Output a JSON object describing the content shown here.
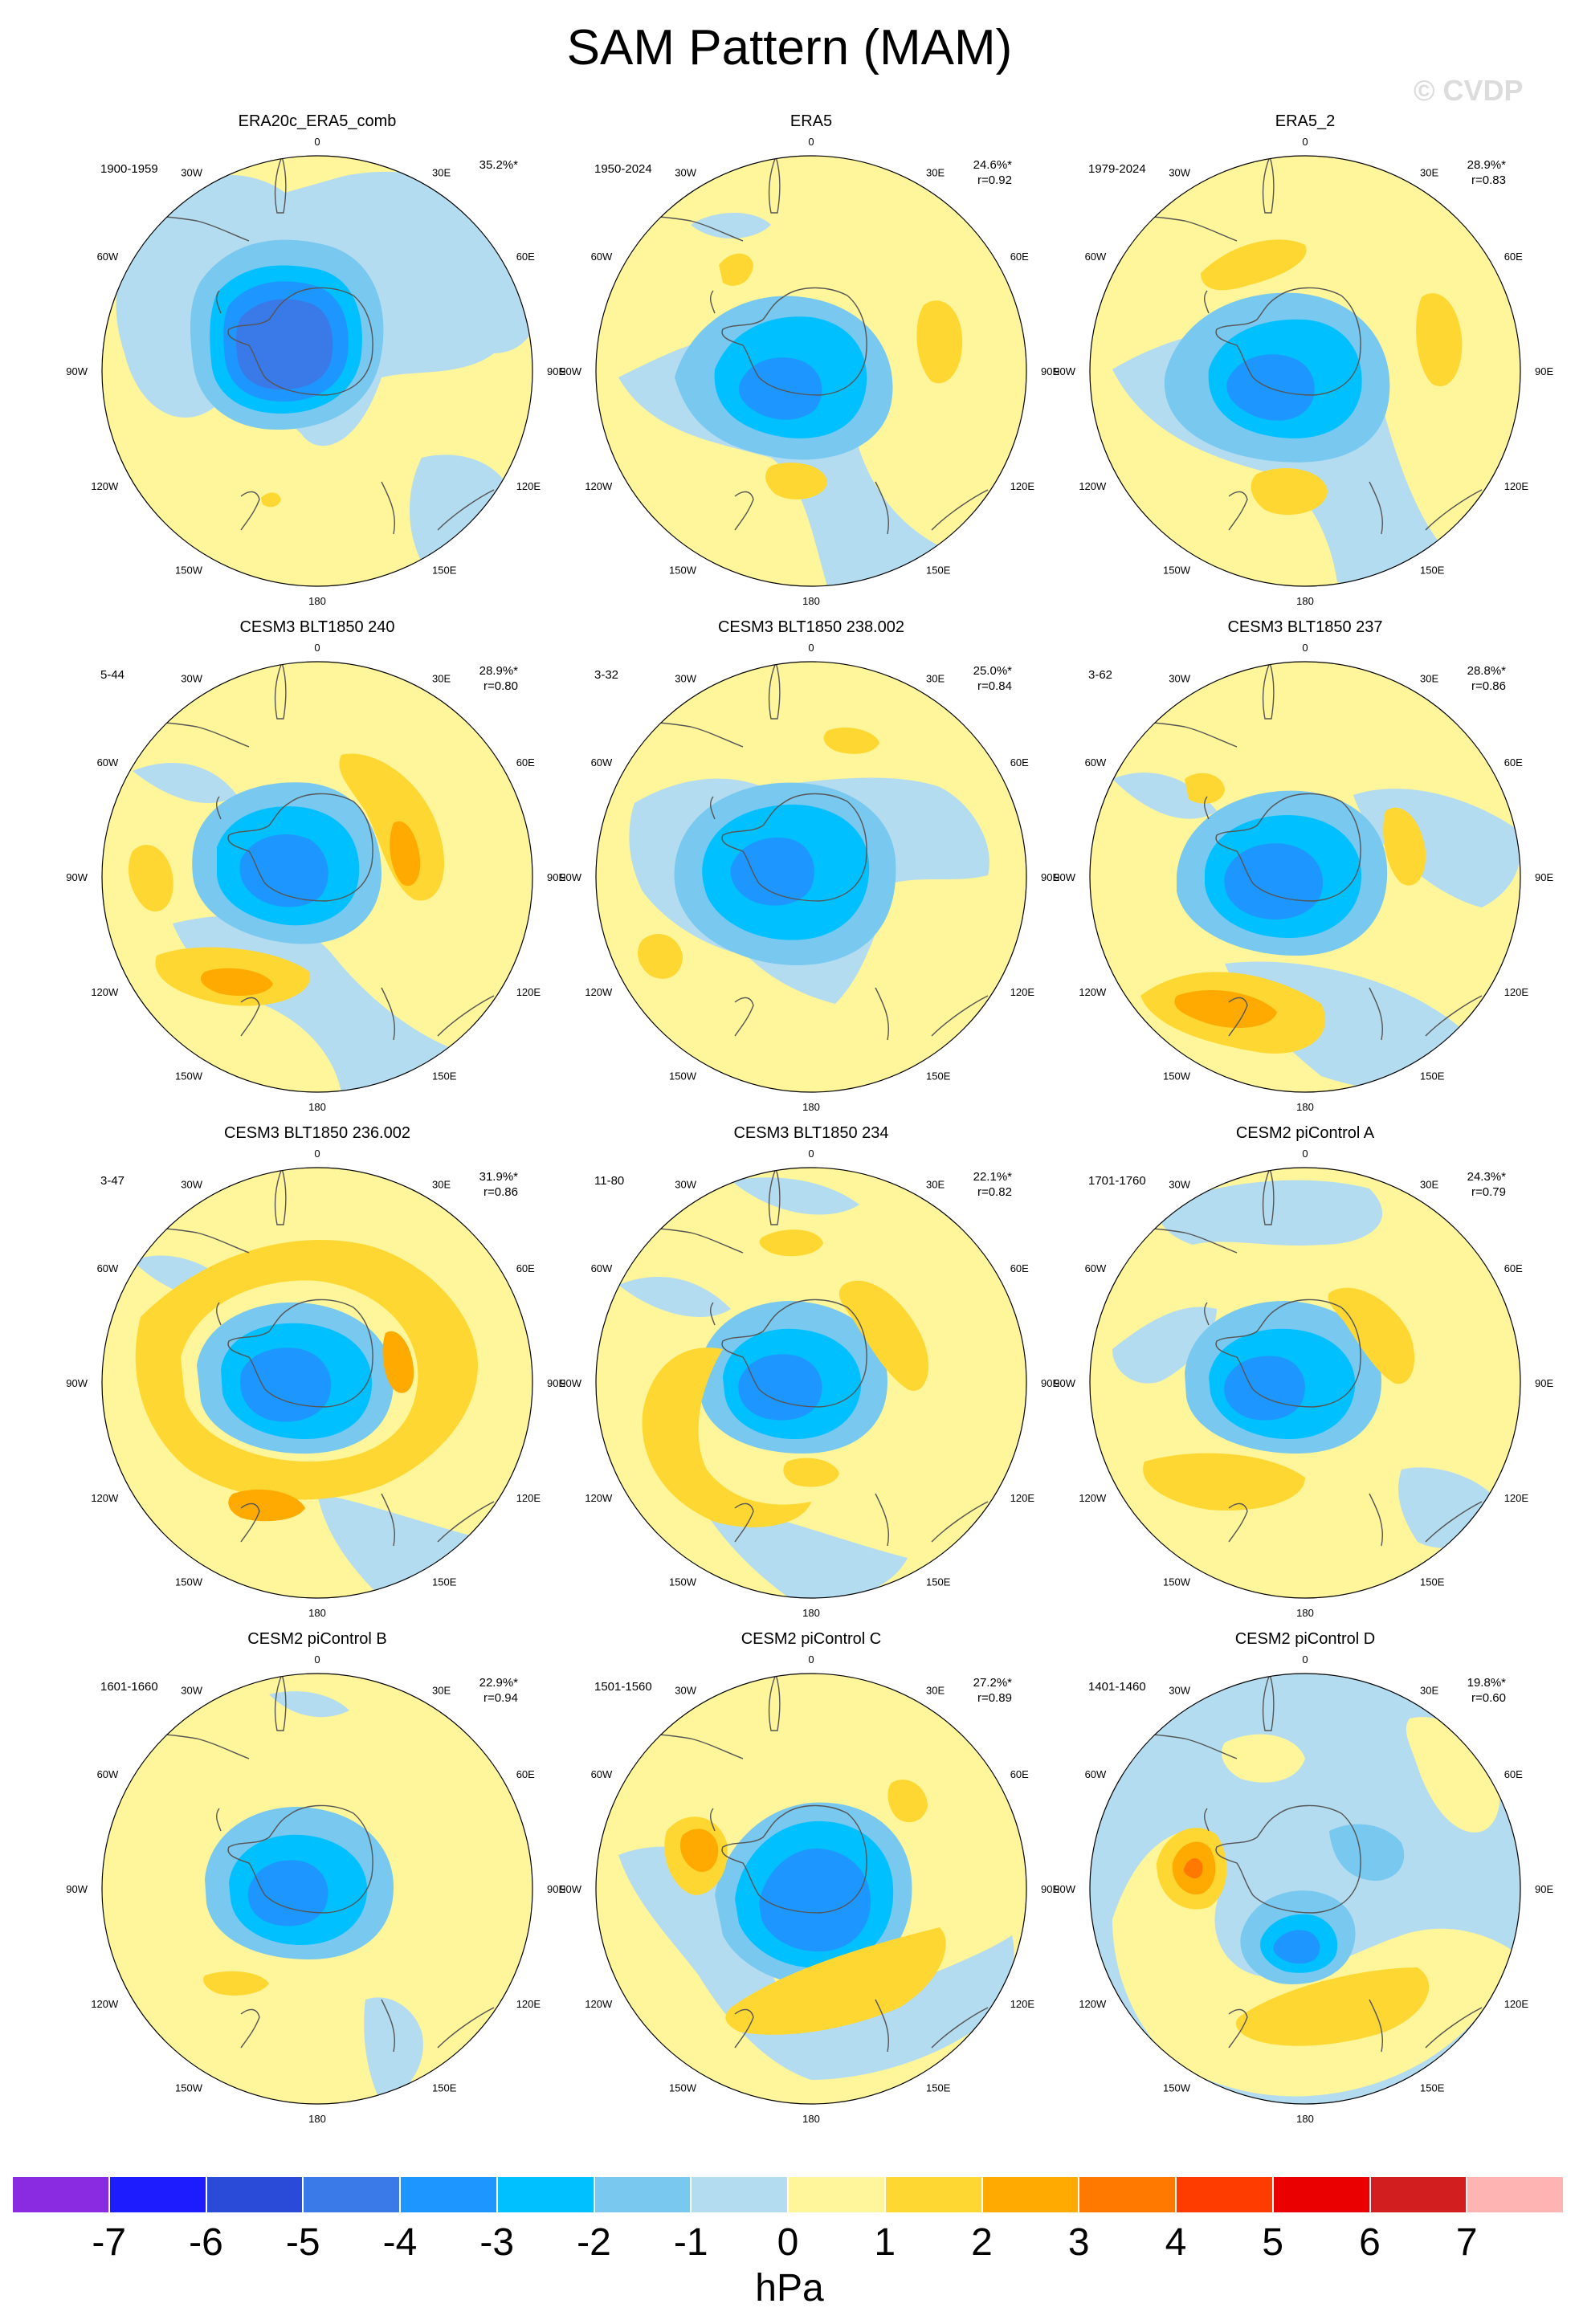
{
  "title": "SAM Pattern (MAM)",
  "copyright": "© CVDP",
  "longitude_labels": [
    "0",
    "30E",
    "60E",
    "90E",
    "120E",
    "150E",
    "180",
    "150W",
    "120W",
    "90W",
    "60W",
    "30W"
  ],
  "panels": [
    {
      "title": "ERA20c_ERA5_comb",
      "period": "1900-1959",
      "percent": "35.2%*",
      "correlation": ""
    },
    {
      "title": "ERA5",
      "period": "1950-2024",
      "percent": "24.6%*",
      "correlation": "r=0.92"
    },
    {
      "title": "ERA5_2",
      "period": "1979-2024",
      "percent": "28.9%*",
      "correlation": "r=0.83"
    },
    {
      "title": "CESM3 BLT1850 240",
      "period": "5-44",
      "percent": "28.9%*",
      "correlation": "r=0.80"
    },
    {
      "title": "CESM3 BLT1850 238.002",
      "period": "3-32",
      "percent": "25.0%*",
      "correlation": "r=0.84"
    },
    {
      "title": "CESM3 BLT1850 237",
      "period": "3-62",
      "percent": "28.8%*",
      "correlation": "r=0.86"
    },
    {
      "title": "CESM3 BLT1850 236.002",
      "period": "3-47",
      "percent": "31.9%*",
      "correlation": "r=0.86"
    },
    {
      "title": "CESM3 BLT1850 234",
      "period": "11-80",
      "percent": "22.1%*",
      "correlation": "r=0.82"
    },
    {
      "title": "CESM2 piControl A",
      "period": "1701-1760",
      "percent": "24.3%*",
      "correlation": "r=0.79"
    },
    {
      "title": "CESM2 piControl B",
      "period": "1601-1660",
      "percent": "22.9%*",
      "correlation": "r=0.94"
    },
    {
      "title": "CESM2 piControl C",
      "period": "1501-1560",
      "percent": "27.2%*",
      "correlation": "r=0.89"
    },
    {
      "title": "CESM2 piControl D",
      "period": "1401-1460",
      "percent": "19.8%*",
      "correlation": "r=0.60"
    }
  ],
  "colorbar": {
    "unit": "hPa",
    "colors": [
      "#8a2be2",
      "#1c1cff",
      "#2a4ad8",
      "#3a7ae8",
      "#1e96ff",
      "#00c0ff",
      "#78c8f0",
      "#b4dcf0",
      "#fff59a",
      "#ffd732",
      "#ffaa00",
      "#ff7800",
      "#ff3c00",
      "#eb0000",
      "#d21e1e",
      "#ffb4b4"
    ],
    "tick_labels": [
      "-7",
      "-6",
      "-5",
      "-4",
      "-3",
      "-2",
      "-1",
      "0",
      "1",
      "2",
      "3",
      "4",
      "5",
      "6",
      "7"
    ]
  }
}
